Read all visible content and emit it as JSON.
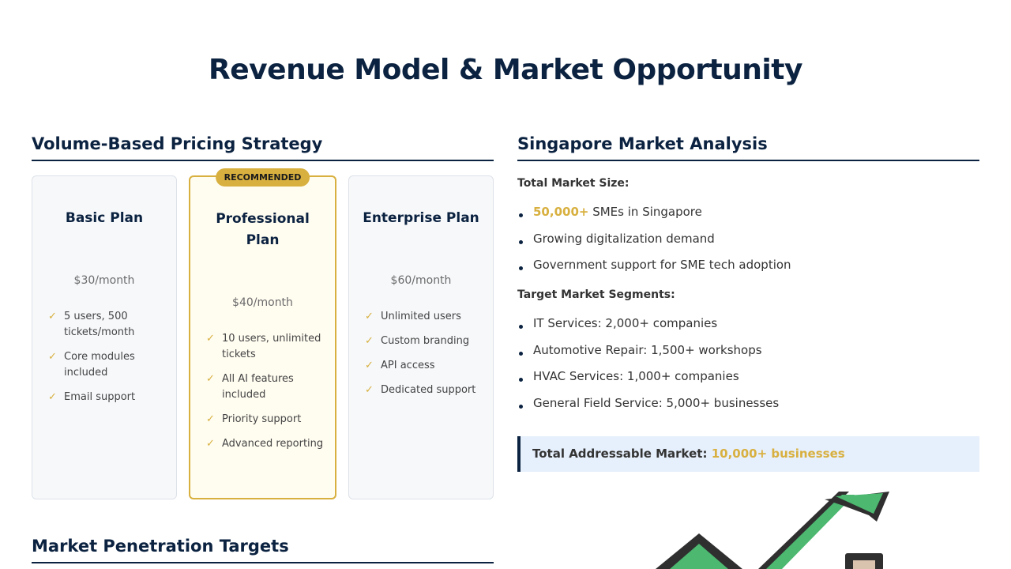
{
  "page": {
    "title": "Revenue Model & Market Opportunity"
  },
  "pricing": {
    "title": "Volume-Based Pricing Strategy",
    "plans": [
      {
        "name": "Basic Plan",
        "price": "$30/month",
        "features": [
          "5 users, 500 tickets/month",
          "Core modules included",
          "Email support"
        ]
      },
      {
        "name": "Professional Plan",
        "badge": "RECOMMENDED",
        "price": "$40/month",
        "features": [
          "10 users, unlimited tickets",
          "All AI features included",
          "Priority support",
          "Advanced reporting"
        ]
      },
      {
        "name": "Enterprise Plan",
        "price": "$60/month",
        "features": [
          "Unlimited users",
          "Custom branding",
          "API access",
          "Dedicated support"
        ]
      }
    ],
    "check_icon": "✓",
    "accent_color": "#d8b03f"
  },
  "market": {
    "title": "Singapore Market Analysis",
    "size_heading": "Total Market Size:",
    "size_items": [
      {
        "highlight": "50,000+",
        "text": " SMEs in Singapore"
      },
      {
        "highlight": "",
        "text": "Growing digitalization demand"
      },
      {
        "highlight": "",
        "text": "Government support for SME tech adoption"
      }
    ],
    "segments_heading": "Target Market Segments:",
    "segments": [
      "IT Services: 2,000+ companies",
      "Automotive Repair: 1,500+ workshops",
      "HVAC Services: 1,000+ companies",
      "General Field Service: 5,000+ businesses"
    ],
    "tam_label": "Total Addressable Market: ",
    "tam_value": "10,000+ businesses",
    "illustration_icon": "growth-chart-icon"
  },
  "penetration": {
    "title": "Market Penetration Targets"
  },
  "colors": {
    "navy": "#0b2240",
    "gold": "#d8b03f",
    "card_bg": "#f6f8fa",
    "pro_bg": "#fffcf0",
    "tam_bg": "#e6effc"
  }
}
